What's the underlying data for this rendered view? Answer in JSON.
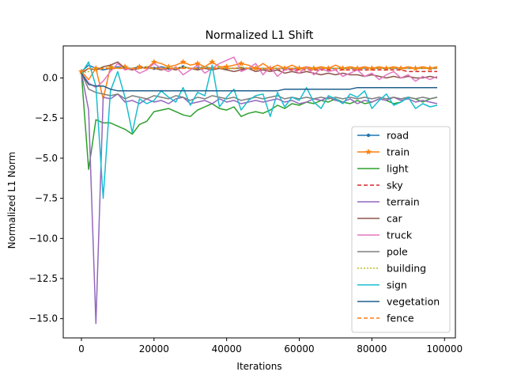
{
  "chart_data": {
    "type": "line",
    "title": "Normalized L1 Shift",
    "xlabel": "Iterations",
    "ylabel": "Normalized L1 Norm",
    "xlim": [
      -5000,
      103000
    ],
    "ylim": [
      -16.2,
      2.0
    ],
    "xticks": [
      0,
      20000,
      40000,
      60000,
      80000,
      100000
    ],
    "xtick_labels": [
      "0",
      "20000",
      "40000",
      "60000",
      "80000",
      "100000"
    ],
    "yticks": [
      0.0,
      -2.5,
      -5.0,
      -7.5,
      -10.0,
      -12.5,
      -15.0
    ],
    "ytick_labels": [
      "0.0",
      "−2.5",
      "−5.0",
      "−7.5",
      "−10.0",
      "−12.5",
      "−15.0"
    ],
    "grid": false,
    "legend_position": "lower-right",
    "x": [
      0,
      2000,
      4000,
      6000,
      8000,
      10000,
      12000,
      14000,
      16000,
      18000,
      20000,
      22000,
      24000,
      26000,
      28000,
      30000,
      32000,
      34000,
      36000,
      38000,
      40000,
      42000,
      44000,
      46000,
      48000,
      50000,
      52000,
      54000,
      56000,
      58000,
      60000,
      62000,
      64000,
      66000,
      68000,
      70000,
      72000,
      74000,
      76000,
      78000,
      80000,
      82000,
      84000,
      86000,
      88000,
      90000,
      92000,
      94000,
      96000,
      98000
    ],
    "series": [
      {
        "name": "road",
        "color": "#1f77b4",
        "dash": "",
        "marker": "dot",
        "values": [
          0.4,
          0.8,
          0.6,
          0.5,
          0.6,
          0.7,
          0.6,
          0.6,
          0.7,
          0.6,
          0.6,
          0.7,
          0.6,
          0.6,
          0.7,
          0.6,
          0.6,
          0.7,
          0.6,
          0.6,
          0.6,
          0.6,
          0.6,
          0.6,
          0.6,
          0.6,
          0.6,
          0.6,
          0.6,
          0.6,
          0.6,
          0.6,
          0.6,
          0.6,
          0.6,
          0.6,
          0.6,
          0.6,
          0.6,
          0.6,
          0.6,
          0.6,
          0.6,
          0.6,
          0.6,
          0.6,
          0.6,
          0.6,
          0.6,
          0.6
        ]
      },
      {
        "name": "train",
        "color": "#ff7f0e",
        "dash": "",
        "marker": "star",
        "values": [
          0.4,
          -0.1,
          0.6,
          -1.3,
          0.7,
          0.6,
          0.7,
          0.5,
          0.7,
          0.6,
          1.0,
          0.9,
          0.7,
          0.8,
          1.0,
          0.8,
          0.9,
          0.7,
          1.0,
          0.7,
          0.7,
          0.8,
          0.9,
          0.8,
          0.6,
          0.9,
          0.6,
          0.8,
          0.6,
          0.8,
          0.6,
          0.7,
          0.6,
          0.7,
          0.6,
          0.8,
          0.6,
          0.7,
          0.6,
          0.7,
          0.6,
          0.7,
          0.6,
          0.7,
          0.6,
          0.7,
          0.6,
          0.7,
          0.6,
          0.7
        ]
      },
      {
        "name": "light",
        "color": "#2ca02c",
        "dash": "",
        "marker": "",
        "values": [
          0.3,
          -5.7,
          -2.6,
          -2.8,
          -2.8,
          -3.0,
          -3.2,
          -3.5,
          -2.9,
          -2.7,
          -2.1,
          -2.0,
          -1.9,
          -2.1,
          -2.3,
          -2.4,
          -2.0,
          -1.8,
          -1.6,
          -1.9,
          -2.0,
          -1.8,
          -2.4,
          -2.2,
          -2.1,
          -2.2,
          -2.0,
          -1.7,
          -1.9,
          -1.6,
          -1.7,
          -1.5,
          -1.6,
          -1.4,
          -1.5,
          -1.3,
          -1.5,
          -1.6,
          -1.4,
          -1.6,
          -1.5,
          -1.3,
          -1.4,
          -1.6,
          -1.5,
          -1.2,
          -1.3,
          -1.5,
          -1.3,
          -1.2
        ]
      },
      {
        "name": "sky",
        "color": "#d62728",
        "dash": "5,3",
        "marker": "",
        "values": [
          0.4,
          0.6,
          0.5,
          0.6,
          0.6,
          0.6,
          0.6,
          0.6,
          0.6,
          0.6,
          0.6,
          0.6,
          0.6,
          0.6,
          0.6,
          0.6,
          0.6,
          0.6,
          0.6,
          0.6,
          0.6,
          0.6,
          0.6,
          0.6,
          0.6,
          0.5,
          0.5,
          0.5,
          0.5,
          0.5,
          0.5,
          0.5,
          0.5,
          0.5,
          0.5,
          0.5,
          0.5,
          0.5,
          0.5,
          0.5,
          0.5,
          0.5,
          0.5,
          0.5,
          0.5,
          0.4,
          0.4,
          0.4,
          0.4,
          0.4
        ]
      },
      {
        "name": "terrain",
        "color": "#9467bd",
        "dash": "",
        "marker": "",
        "values": [
          0.3,
          -2.0,
          -15.3,
          -1.2,
          -1.3,
          -1.0,
          -1.5,
          -1.4,
          -1.6,
          -1.3,
          -1.5,
          -1.4,
          -1.6,
          -1.3,
          -1.2,
          -1.6,
          -1.5,
          -1.4,
          -1.6,
          -1.3,
          -1.5,
          -1.4,
          -1.6,
          -1.5,
          -1.4,
          -1.5,
          -1.4,
          -1.3,
          -1.5,
          -1.4,
          -1.6,
          -1.5,
          -1.3,
          -1.4,
          -1.2,
          -1.4,
          -1.5,
          -1.3,
          -1.6,
          -1.4,
          -1.5,
          -1.3,
          -1.4,
          -1.2,
          -1.4,
          -1.3,
          -1.5,
          -1.4,
          -1.5,
          -1.6
        ]
      },
      {
        "name": "car",
        "color": "#8c564b",
        "dash": "",
        "marker": "",
        "values": [
          0.3,
          0.6,
          0.5,
          0.7,
          0.8,
          1.0,
          0.6,
          0.5,
          0.6,
          0.7,
          0.6,
          0.5,
          0.6,
          0.5,
          0.7,
          0.6,
          0.5,
          0.6,
          0.5,
          0.6,
          0.5,
          0.4,
          0.5,
          0.6,
          0.4,
          0.5,
          0.4,
          0.5,
          0.3,
          0.4,
          0.3,
          0.4,
          0.3,
          0.2,
          0.3,
          0.2,
          0.3,
          0.2,
          0.2,
          0.1,
          0.2,
          0.1,
          0.0,
          0.1,
          0.0,
          0.1,
          0.0,
          0.0,
          0.1,
          0.0
        ]
      },
      {
        "name": "truck",
        "color": "#e377c2",
        "dash": "",
        "marker": "",
        "values": [
          0.3,
          -0.3,
          -0.6,
          -0.2,
          0.4,
          0.9,
          0.5,
          0.6,
          0.3,
          0.5,
          0.9,
          0.6,
          0.4,
          0.7,
          0.2,
          0.5,
          0.8,
          0.3,
          0.6,
          0.9,
          1.1,
          1.3,
          0.4,
          0.6,
          0.9,
          0.2,
          0.7,
          0.1,
          0.5,
          0.6,
          0.3,
          0.7,
          0.2,
          0.6,
          0.4,
          0.5,
          0.1,
          0.3,
          0.5,
          0.1,
          0.3,
          -0.1,
          0.2,
          0.4,
          0.0,
          0.2,
          -0.2,
          0.1,
          -0.1,
          0.1
        ]
      },
      {
        "name": "pole",
        "color": "#7f7f7f",
        "dash": "",
        "marker": "",
        "values": [
          0.3,
          -0.7,
          -0.9,
          -1.0,
          -1.1,
          -1.0,
          -1.3,
          -1.1,
          -1.2,
          -1.3,
          -1.1,
          -1.2,
          -1.3,
          -1.1,
          -1.2,
          -1.4,
          -1.2,
          -1.3,
          -1.1,
          -1.2,
          -1.3,
          -1.2,
          -1.4,
          -1.3,
          -1.2,
          -1.3,
          -1.2,
          -1.1,
          -1.3,
          -1.2,
          -1.3,
          -1.2,
          -1.3,
          -1.2,
          -1.3,
          -1.2,
          -1.3,
          -1.2,
          -1.3,
          -1.2,
          -1.3,
          -1.2,
          -1.3,
          -1.2,
          -1.3,
          -1.2,
          -1.3,
          -1.2,
          -1.3,
          -1.2
        ]
      },
      {
        "name": "building",
        "color": "#bcbd22",
        "dash": "2,2",
        "marker": "",
        "values": [
          0.3,
          0.4,
          0.6,
          0.6,
          0.7,
          0.6,
          0.7,
          0.6,
          0.6,
          0.7,
          0.6,
          0.6,
          0.7,
          0.6,
          0.7,
          0.6,
          0.6,
          0.7,
          0.6,
          0.7,
          0.6,
          0.6,
          0.7,
          0.6,
          0.6,
          0.6,
          0.6,
          0.6,
          0.6,
          0.6,
          0.6,
          0.6,
          0.6,
          0.6,
          0.6,
          0.6,
          0.6,
          0.6,
          0.6,
          0.6,
          0.6,
          0.6,
          0.6,
          0.6,
          0.6,
          0.6,
          0.6,
          0.6,
          0.6,
          0.6
        ]
      },
      {
        "name": "sign",
        "color": "#17becf",
        "dash": "",
        "marker": "",
        "values": [
          0.3,
          1.0,
          -0.5,
          -7.5,
          -0.8,
          0.4,
          -1.2,
          -3.4,
          -1.3,
          -1.6,
          -1.4,
          -0.8,
          -1.2,
          -1.5,
          -0.6,
          -1.7,
          -0.9,
          -1.1,
          0.8,
          -1.8,
          -1.2,
          -0.7,
          -2.0,
          -1.4,
          -1.1,
          -1.0,
          -2.4,
          -0.9,
          -1.8,
          -1.2,
          -1.4,
          -0.6,
          -1.5,
          -1.9,
          -1.1,
          -1.3,
          -1.6,
          -1.0,
          -1.2,
          -0.8,
          -1.9,
          -1.4,
          -1.0,
          -1.7,
          -1.5,
          -1.2,
          -1.9,
          -1.6,
          -1.8,
          -1.7
        ]
      },
      {
        "name": "vegetation",
        "color": "#1f5f8b",
        "dash": "",
        "marker": "",
        "values": [
          0.3,
          -0.4,
          -0.5,
          -0.5,
          -0.7,
          -0.8,
          -0.8,
          -0.8,
          -0.8,
          -0.8,
          -0.8,
          -0.8,
          -0.8,
          -0.8,
          -0.8,
          -0.8,
          -0.8,
          -0.8,
          -0.8,
          -0.8,
          -0.8,
          -0.8,
          -0.8,
          -0.8,
          -0.8,
          -0.8,
          -0.8,
          -0.8,
          -0.7,
          -0.7,
          -0.7,
          -0.7,
          -0.7,
          -0.7,
          -0.7,
          -0.7,
          -0.7,
          -0.7,
          -0.6,
          -0.6,
          -0.6,
          -0.6,
          -0.6,
          -0.6,
          -0.6,
          -0.6,
          -0.6,
          -0.6,
          -0.6,
          -0.6
        ]
      },
      {
        "name": "fence",
        "color": "#ff7f0e",
        "dash": "5,3",
        "marker": "",
        "values": [
          0.4,
          0.6,
          0.5,
          0.6,
          0.6,
          0.6,
          0.6,
          0.6,
          0.6,
          0.6,
          0.6,
          0.6,
          0.6,
          0.6,
          0.6,
          0.6,
          0.6,
          0.6,
          0.6,
          0.6,
          0.6,
          0.6,
          0.6,
          0.6,
          0.6,
          0.6,
          0.6,
          0.6,
          0.6,
          0.6,
          0.6,
          0.6,
          0.6,
          0.6,
          0.6,
          0.6,
          0.6,
          0.6,
          0.6,
          0.6,
          0.6,
          0.6,
          0.6,
          0.6,
          0.6,
          0.6,
          0.6,
          0.6,
          0.6,
          0.6
        ]
      }
    ]
  }
}
